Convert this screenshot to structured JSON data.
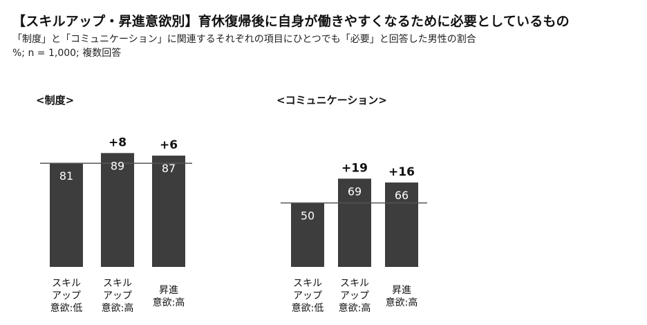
{
  "title": "【スキルアップ・昇進意欲別】育休復帰後に自身が働きやすくなるために必要としているもの",
  "subtitle_line1": "「制度」と「コミュニケーション」に関連するそれぞれの項目にひとつでも「必要」と回答した男性の割合",
  "subtitle_line2": "%; n = 1,000; 複数回答",
  "colors": {
    "bar": "#3d3d3d",
    "bar_label": "#ffffff",
    "baseline": "#555555",
    "text": "#111111"
  },
  "chart_data": [
    {
      "type": "bar",
      "title": "<制度>",
      "categories": [
        [
          "スキル",
          "アップ",
          "意欲:低"
        ],
        [
          "スキル",
          "アップ",
          "意欲:高"
        ],
        [
          "昇進",
          "意欲:高"
        ]
      ],
      "values": [
        81,
        89,
        87
      ],
      "diff_labels": [
        "",
        "+8",
        "+6"
      ],
      "reference_value": 81,
      "ylim": [
        0,
        100
      ]
    },
    {
      "type": "bar",
      "title": "<コミュニケーション>",
      "categories": [
        [
          "スキル",
          "アップ",
          "意欲:低"
        ],
        [
          "スキル",
          "アップ",
          "意欲:高"
        ],
        [
          "昇進",
          "意欲:高"
        ]
      ],
      "values": [
        50,
        69,
        66
      ],
      "diff_labels": [
        "",
        "+19",
        "+16"
      ],
      "reference_value": 50,
      "ylim": [
        0,
        100
      ]
    }
  ]
}
